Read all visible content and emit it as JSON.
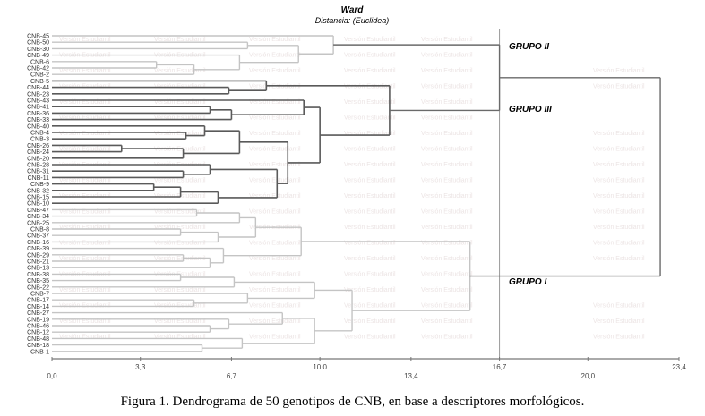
{
  "figure": {
    "caption": "Figura 1. Dendrograma de 50 genotipos de CNB, en base a descriptores morfológicos.",
    "watermark": "Versión Estudiantil"
  },
  "chart_data": {
    "type": "dendrogram",
    "title": "Ward",
    "subtitle": "Distancia: (Euclidea)",
    "xlim": [
      0,
      23.4
    ],
    "x_ticks": [
      "0,0",
      "3,3",
      "6,7",
      "10,0",
      "13,4",
      "16,7",
      "20,0",
      "23,4"
    ],
    "x_tick_values": [
      0,
      3.3,
      6.7,
      10.0,
      13.4,
      16.7,
      20.0,
      23.4
    ],
    "cut_line": 16.7,
    "colors": {
      "group_light": "#c4c4c4",
      "group_dark": "#5a5a5a",
      "cut_line": "#9a9a9a"
    },
    "groups": [
      {
        "label": "GRUPO II",
        "leaf_anchor": "CNB-45"
      },
      {
        "label": "GRUPO III",
        "leaf_anchor": "CNB-33"
      },
      {
        "label": "GRUPO I",
        "leaf_anchor": "CNB-13"
      }
    ],
    "leaves": [
      "CNB-45",
      "CNB-50",
      "CNB-30",
      "CNB-49",
      "CNB-6",
      "CNB-42",
      "CNB-2",
      "CNB-5",
      "CNB-44",
      "CNB-23",
      "CNB-43",
      "CNB-41",
      "CNB-36",
      "CNB-33",
      "CNB-40",
      "CNB-4",
      "CNB-3",
      "CNB-26",
      "CNB-24",
      "CNB-20",
      "CNB-28",
      "CNB-31",
      "CNB-11",
      "CNB-9",
      "CNB-32",
      "CNB-15",
      "CNB-10",
      "CNB-47",
      "CNB-34",
      "CNB-25",
      "CNB-8",
      "CNB-37",
      "CNB-16",
      "CNB-39",
      "CNB-29",
      "CNB-21",
      "CNB-13",
      "CNB-38",
      "CNB-35",
      "CNB-22",
      "CNB-7",
      "CNB-17",
      "CNB-14",
      "CNB-27",
      "CNB-19",
      "CNB-46",
      "CNB-12",
      "CNB-48",
      "CNB-18",
      "CNB-1"
    ],
    "tree": {
      "h": 22.7,
      "c": [
        {
          "h": 16.7,
          "c": [
            {
              "g": "light",
              "h": 10.5,
              "c": [
                "CNB-45",
                {
                  "h": 9.2,
                  "c": [
                    {
                      "h": 7.3,
                      "c": [
                        "CNB-50",
                        "CNB-30"
                      ]
                    },
                    {
                      "h": 7.0,
                      "c": [
                        "CNB-49",
                        {
                          "h": 5.3,
                          "c": [
                            {
                              "h": 3.9,
                              "c": [
                                "CNB-6",
                                "CNB-42"
                              ]
                            },
                            "CNB-2"
                          ]
                        }
                      ]
                    }
                  ]
                }
              ]
            },
            {
              "g": "dark",
              "h": 12.6,
              "c": [
                {
                  "h": 8.0,
                  "c": [
                    "CNB-5",
                    {
                      "h": 6.6,
                      "c": [
                        "CNB-44",
                        "CNB-23"
                      ]
                    }
                  ]
                },
                {
                  "h": 10.0,
                  "c": [
                    {
                      "h": 9.4,
                      "c": [
                        "CNB-43",
                        {
                          "h": 6.7,
                          "c": [
                            {
                              "h": 5.9,
                              "c": [
                                "CNB-41",
                                "CNB-36"
                              ]
                            },
                            "CNB-33"
                          ]
                        }
                      ]
                    },
                    {
                      "h": 8.8,
                      "c": [
                        {
                          "h": 7.0,
                          "c": [
                            {
                              "h": 5.7,
                              "c": [
                                "CNB-40",
                                {
                                  "h": 5.0,
                                  "c": [
                                    "CNB-4",
                                    "CNB-3"
                                  ]
                                }
                              ]
                            },
                            {
                              "h": 4.9,
                              "c": [
                                {
                                  "h": 2.6,
                                  "c": [
                                    "CNB-26",
                                    "CNB-24"
                                  ]
                                },
                                "CNB-20"
                              ]
                            }
                          ]
                        },
                        {
                          "h": 8.4,
                          "c": [
                            {
                              "h": 5.9,
                              "c": [
                                "CNB-28",
                                {
                                  "h": 4.9,
                                  "c": [
                                    "CNB-31",
                                    "CNB-11"
                                  ]
                                }
                              ]
                            },
                            {
                              "h": 6.2,
                              "c": [
                                {
                                  "h": 4.8,
                                  "c": [
                                    {
                                      "h": 3.8,
                                      "c": [
                                        "CNB-9",
                                        "CNB-32"
                                      ]
                                    },
                                    "CNB-15"
                                  ]
                                },
                                "CNB-10"
                              ]
                            }
                          ]
                        }
                      ]
                    }
                  ]
                }
              ]
            }
          ]
        },
        {
          "g": "light",
          "h": 15.6,
          "c": [
            {
              "h": 9.3,
              "c": [
                {
                  "h": 7.6,
                  "c": [
                    {
                      "h": 7.0,
                      "c": [
                        {
                          "h": 5.4,
                          "c": [
                            "CNB-47",
                            "CNB-34"
                          ]
                        },
                        "CNB-25"
                      ]
                    },
                    {
                      "h": 6.2,
                      "c": [
                        {
                          "h": 4.8,
                          "c": [
                            "CNB-8",
                            "CNB-37"
                          ]
                        },
                        "CNB-16"
                      ]
                    }
                  ]
                },
                {
                  "h": 6.4,
                  "c": [
                    "CNB-39",
                    {
                      "h": 5.9,
                      "c": [
                        {
                          "h": 4.9,
                          "c": [
                            "CNB-29",
                            "CNB-21"
                          ]
                        },
                        "CNB-13"
                      ]
                    }
                  ]
                }
              ]
            },
            {
              "h": 11.2,
              "c": [
                {
                  "h": 9.8,
                  "c": [
                    {
                      "h": 6.8,
                      "c": [
                        {
                          "h": 4.8,
                          "c": [
                            "CNB-38",
                            "CNB-35"
                          ]
                        },
                        "CNB-22"
                      ]
                    },
                    {
                      "h": 7.3,
                      "c": [
                        "CNB-7",
                        {
                          "h": 5.3,
                          "c": [
                            "CNB-17",
                            "CNB-14"
                          ]
                        }
                      ]
                    }
                  ]
                },
                {
                  "h": 9.8,
                  "c": [
                    {
                      "h": 8.6,
                      "c": [
                        "CNB-27",
                        {
                          "h": 6.6,
                          "c": [
                            "CNB-19",
                            {
                              "h": 5.9,
                              "c": [
                                "CNB-46",
                                "CNB-12"
                              ]
                            }
                          ]
                        }
                      ]
                    },
                    {
                      "h": 7.1,
                      "c": [
                        "CNB-48",
                        {
                          "h": 5.6,
                          "c": [
                            "CNB-18",
                            "CNB-1"
                          ]
                        }
                      ]
                    }
                  ]
                }
              ]
            }
          ]
        }
      ]
    }
  }
}
